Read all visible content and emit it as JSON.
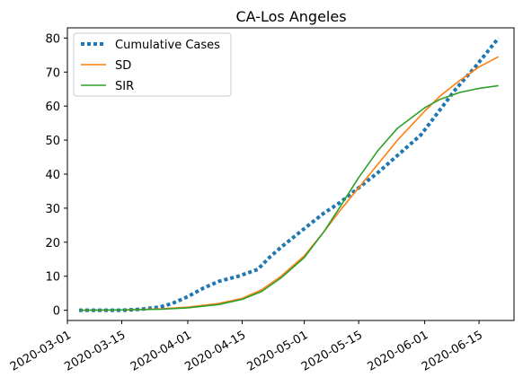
{
  "chart_data": {
    "type": "line",
    "title": "CA-Los Angeles",
    "xlabel": "",
    "ylabel": "",
    "x_type": "date",
    "xlim": [
      "2020-03-01",
      "2020-06-24"
    ],
    "ylim": [
      -3,
      83
    ],
    "x_ticks": [
      "2020-03-01",
      "2020-03-15",
      "2020-04-01",
      "2020-04-15",
      "2020-05-01",
      "2020-05-15",
      "2020-06-01",
      "2020-06-15"
    ],
    "y_ticks": [
      0,
      10,
      20,
      30,
      40,
      50,
      60,
      70,
      80
    ],
    "grid": false,
    "legend_position": "top-left",
    "series": [
      {
        "name": "Cumulative Cases",
        "style": "dotted",
        "color": "#1f77b4",
        "points": [
          [
            "2020-03-04",
            0.0
          ],
          [
            "2020-03-10",
            0.0
          ],
          [
            "2020-03-15",
            0.0
          ],
          [
            "2020-03-20",
            0.3
          ],
          [
            "2020-03-25",
            1.0
          ],
          [
            "2020-03-28",
            2.0
          ],
          [
            "2020-04-01",
            4.0
          ],
          [
            "2020-04-05",
            6.5
          ],
          [
            "2020-04-09",
            8.5
          ],
          [
            "2020-04-14",
            10.0
          ],
          [
            "2020-04-19",
            12.0
          ],
          [
            "2020-04-22",
            15.5
          ],
          [
            "2020-04-25",
            18.5
          ],
          [
            "2020-05-01",
            24.0
          ],
          [
            "2020-05-06",
            28.5
          ],
          [
            "2020-05-10",
            31.5
          ],
          [
            "2020-05-15",
            36.0
          ],
          [
            "2020-05-20",
            40.5
          ],
          [
            "2020-05-25",
            45.5
          ],
          [
            "2020-05-31",
            51.5
          ],
          [
            "2020-06-04",
            57.5
          ],
          [
            "2020-06-09",
            65.0
          ],
          [
            "2020-06-14",
            71.5
          ],
          [
            "2020-06-20",
            80.0
          ]
        ]
      },
      {
        "name": "SD",
        "style": "solid",
        "color": "#ff7f0e",
        "points": [
          [
            "2020-03-04",
            0.0
          ],
          [
            "2020-03-15",
            0.1
          ],
          [
            "2020-03-25",
            0.4
          ],
          [
            "2020-04-01",
            0.9
          ],
          [
            "2020-04-09",
            2.0
          ],
          [
            "2020-04-15",
            3.5
          ],
          [
            "2020-04-20",
            6.0
          ],
          [
            "2020-04-25",
            10.0
          ],
          [
            "2020-05-01",
            16.0
          ],
          [
            "2020-05-06",
            23.0
          ],
          [
            "2020-05-10",
            29.0
          ],
          [
            "2020-05-15",
            36.0
          ],
          [
            "2020-05-20",
            43.0
          ],
          [
            "2020-05-25",
            50.0
          ],
          [
            "2020-06-01",
            58.5
          ],
          [
            "2020-06-05",
            63.0
          ],
          [
            "2020-06-10",
            67.5
          ],
          [
            "2020-06-15",
            71.5
          ],
          [
            "2020-06-20",
            74.5
          ]
        ]
      },
      {
        "name": "SIR",
        "style": "solid",
        "color": "#2ca02c",
        "points": [
          [
            "2020-03-04",
            0.0
          ],
          [
            "2020-03-15",
            0.1
          ],
          [
            "2020-03-25",
            0.3
          ],
          [
            "2020-04-01",
            0.7
          ],
          [
            "2020-04-09",
            1.7
          ],
          [
            "2020-04-15",
            3.2
          ],
          [
            "2020-04-20",
            5.5
          ],
          [
            "2020-04-25",
            9.5
          ],
          [
            "2020-05-01",
            15.5
          ],
          [
            "2020-05-06",
            23.0
          ],
          [
            "2020-05-10",
            30.0
          ],
          [
            "2020-05-15",
            39.0
          ],
          [
            "2020-05-20",
            47.0
          ],
          [
            "2020-05-25",
            53.5
          ],
          [
            "2020-06-01",
            59.5
          ],
          [
            "2020-06-05",
            62.0
          ],
          [
            "2020-06-10",
            64.0
          ],
          [
            "2020-06-15",
            65.2
          ],
          [
            "2020-06-20",
            66.0
          ]
        ]
      }
    ]
  }
}
